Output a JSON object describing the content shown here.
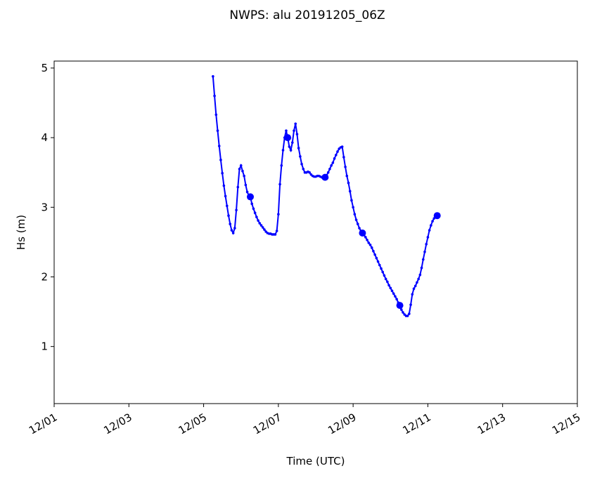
{
  "chart_data": {
    "type": "line",
    "title": "NWPS: alu 20191205_06Z",
    "xlabel": "Time (UTC)",
    "ylabel": "Hs (m)",
    "color": "#0000ff",
    "xlim": [
      0,
      336
    ],
    "ylim": [
      0.18,
      5.1
    ],
    "xticks": [
      {
        "value": 0,
        "label": "12/01"
      },
      {
        "value": 48,
        "label": "12/03"
      },
      {
        "value": 96,
        "label": "12/05"
      },
      {
        "value": 144,
        "label": "12/07"
      },
      {
        "value": 192,
        "label": "12/09"
      },
      {
        "value": 240,
        "label": "12/11"
      },
      {
        "value": 288,
        "label": "12/13"
      },
      {
        "value": 336,
        "label": "12/15"
      }
    ],
    "yticks": [
      1,
      2,
      3,
      4,
      5
    ],
    "x": [
      102,
      103,
      104,
      105,
      106,
      107,
      108,
      109,
      110,
      111,
      112,
      113,
      114,
      115,
      116,
      117,
      118,
      119,
      120,
      121,
      122,
      123,
      124,
      125,
      126,
      127,
      128,
      129,
      130,
      131,
      132,
      133,
      134,
      135,
      136,
      137,
      138,
      139,
      140,
      141,
      142,
      143,
      144,
      145,
      146,
      147,
      148,
      149,
      150,
      151,
      152,
      153,
      154,
      155,
      156,
      157,
      158,
      159,
      160,
      161,
      162,
      163,
      164,
      165,
      166,
      167,
      168,
      169,
      170,
      171,
      172,
      173,
      174,
      175,
      176,
      177,
      178,
      179,
      180,
      181,
      182,
      183,
      184,
      185,
      186,
      187,
      188,
      189,
      190,
      191,
      192,
      193,
      194,
      195,
      196,
      197,
      198,
      199,
      200,
      201,
      202,
      203,
      204,
      205,
      206,
      207,
      208,
      209,
      210,
      211,
      212,
      213,
      214,
      215,
      216,
      217,
      218,
      219,
      220,
      221,
      222,
      223,
      224,
      225,
      226,
      227,
      228,
      229,
      230,
      231,
      232,
      233,
      234,
      235,
      236,
      237,
      238,
      239,
      240,
      241,
      242,
      243,
      244,
      245,
      246
    ],
    "values": [
      4.88,
      4.6,
      4.33,
      4.1,
      3.88,
      3.68,
      3.49,
      3.31,
      3.16,
      3.02,
      2.88,
      2.76,
      2.67,
      2.63,
      2.7,
      2.96,
      3.29,
      3.55,
      3.6,
      3.52,
      3.45,
      3.32,
      3.22,
      3.17,
      3.15,
      3.05,
      2.98,
      2.92,
      2.86,
      2.81,
      2.77,
      2.74,
      2.71,
      2.68,
      2.65,
      2.63,
      2.62,
      2.62,
      2.61,
      2.61,
      2.61,
      2.66,
      2.9,
      3.33,
      3.6,
      3.82,
      4.0,
      4.1,
      4.0,
      3.87,
      3.82,
      3.93,
      4.1,
      4.2,
      4.05,
      3.85,
      3.73,
      3.62,
      3.55,
      3.5,
      3.5,
      3.51,
      3.5,
      3.47,
      3.45,
      3.44,
      3.44,
      3.45,
      3.45,
      3.44,
      3.43,
      3.43,
      3.43,
      3.46,
      3.5,
      3.55,
      3.6,
      3.64,
      3.7,
      3.75,
      3.8,
      3.84,
      3.86,
      3.87,
      3.72,
      3.58,
      3.45,
      3.35,
      3.23,
      3.1,
      3.0,
      2.9,
      2.82,
      2.76,
      2.7,
      2.66,
      2.63,
      2.6,
      2.57,
      2.53,
      2.49,
      2.46,
      2.42,
      2.37,
      2.32,
      2.27,
      2.22,
      2.17,
      2.12,
      2.07,
      2.02,
      1.97,
      1.93,
      1.88,
      1.84,
      1.8,
      1.76,
      1.72,
      1.68,
      1.63,
      1.59,
      1.53,
      1.49,
      1.46,
      1.44,
      1.44,
      1.47,
      1.6,
      1.75,
      1.83,
      1.87,
      1.92,
      1.97,
      2.03,
      2.13,
      2.25,
      2.36,
      2.47,
      2.57,
      2.67,
      2.74,
      2.8,
      2.84,
      2.87,
      2.88
    ]
  }
}
